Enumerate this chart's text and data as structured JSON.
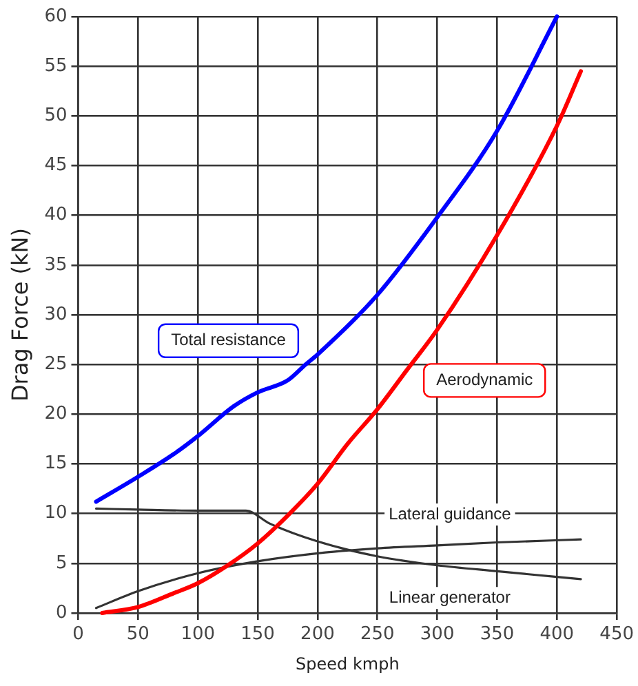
{
  "chart_data": {
    "type": "line",
    "xlabel": "Speed kmph",
    "ylabel": "Drag Force (kN)",
    "xlim": [
      0,
      450
    ],
    "xticks": [
      0,
      50,
      100,
      150,
      200,
      250,
      300,
      350,
      400,
      450
    ],
    "ylim": [
      0,
      60
    ],
    "yticks": [
      0,
      5,
      10,
      15,
      20,
      25,
      30,
      35,
      40,
      45,
      50,
      55,
      60
    ],
    "grid": true,
    "marker": "none",
    "series": [
      {
        "name": "Total resistance",
        "color": "#0000ff",
        "x": [
          15,
          50,
          80,
          100,
          130,
          150,
          175,
          190,
          200,
          250,
          300,
          350,
          400
        ],
        "values": [
          11.2,
          13.7,
          16,
          17.8,
          20.8,
          22.2,
          23.4,
          25,
          26,
          32,
          39.8,
          48.5,
          60
        ]
      },
      {
        "name": "Aerodynamic",
        "color": "#ff0000",
        "x": [
          20,
          50,
          80,
          100,
          125,
          150,
          175,
          200,
          225,
          250,
          275,
          300,
          350,
          400,
          420
        ],
        "values": [
          0,
          0.6,
          2,
          3,
          4.8,
          7,
          9.8,
          13,
          17,
          20.5,
          24.5,
          28.5,
          38,
          49,
          54.5
        ]
      },
      {
        "color": "#333333",
        "x": [
          15,
          50,
          100,
          150,
          200,
          250,
          300,
          350,
          420
        ],
        "values": [
          0.5,
          2.2,
          4,
          5.2,
          6,
          6.5,
          6.8,
          7.1,
          7.4
        ]
      },
      {
        "color": "#333333",
        "x": [
          15,
          50,
          100,
          140,
          160,
          200,
          250,
          300,
          350,
          420
        ],
        "values": [
          10.5,
          10.4,
          10.3,
          10.3,
          9,
          7.2,
          5.7,
          4.8,
          4.2,
          3.4
        ]
      }
    ],
    "annotations": [
      "Lateral guidance",
      "Linear generator"
    ]
  }
}
